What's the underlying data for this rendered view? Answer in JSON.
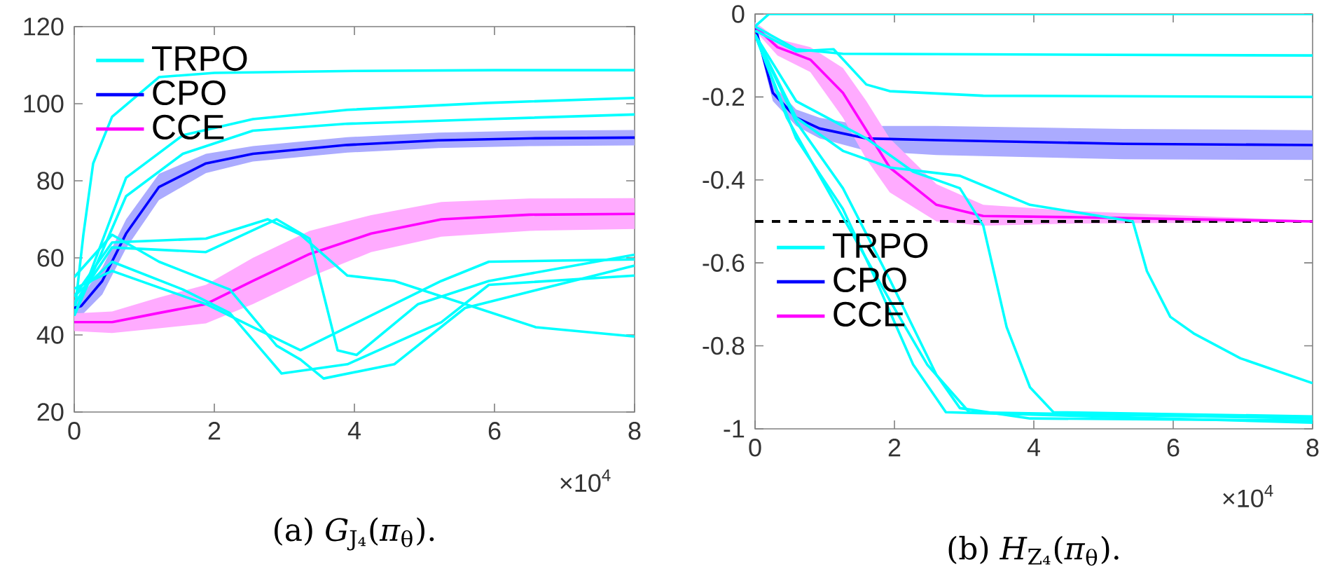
{
  "chart_data": [
    {
      "type": "line",
      "xlim": [
        0,
        8
      ],
      "ylim": [
        20,
        120
      ],
      "xticks": [
        0,
        2,
        4,
        6,
        8
      ],
      "yticks": [
        20,
        40,
        60,
        80,
        100,
        120
      ],
      "legend": "top left",
      "annotations": [
        "×10$^{4}$",
        "(a) *G*$_{J₄}$(*π*$_{θ}$)."
      ],
      "series": [
        {
          "name": "TRPO",
          "color": "#00ffff",
          "x": [
            0,
            0.13,
            0.27,
            0.54,
            1.21,
            2,
            4,
            6,
            8
          ],
          "values": [
            45,
            66,
            84.5,
            96.6,
            106.9,
            108,
            108.5,
            108.7,
            108.7
          ]
        },
        {
          "name": "CPO",
          "color": "#0000ff",
          "x": [
            0,
            0.1,
            0.4,
            0.74,
            1.21,
            1.88,
            2.55,
            3.9,
            5.2,
            6.5,
            8
          ],
          "values": [
            47,
            47.5,
            54,
            66.3,
            78.4,
            84.5,
            87,
            89.3,
            90.5,
            91,
            91.2
          ],
          "lower": [
            45,
            45,
            50.5,
            62.5,
            75,
            82,
            85,
            87.3,
            88.5,
            89,
            89.2
          ],
          "upper": [
            49,
            50,
            57.5,
            70,
            81.8,
            87,
            89,
            91.3,
            92.5,
            93,
            93.2
          ]
        },
        {
          "name": "CCE",
          "color": "#ff00ff",
          "x": [
            0,
            0.54,
            1.21,
            1.88,
            2.55,
            3.36,
            4.24,
            5.24,
            6.5,
            8
          ],
          "values": [
            43.3,
            43.3,
            45.7,
            48,
            54,
            61,
            66.3,
            70,
            71.2,
            71.4
          ],
          "lower": [
            41,
            40.5,
            41.7,
            43,
            48,
            55,
            61.5,
            65.5,
            67,
            67.5
          ],
          "upper": [
            45.6,
            46.1,
            49.7,
            53,
            60,
            67,
            71.1,
            74.5,
            75.4,
            75.5
          ]
        },
        {
          "color": "#00ffff",
          "x": [
            0,
            0.74,
            1.55,
            2.55,
            3.9,
            5.9,
            8
          ],
          "values": [
            45,
            80.8,
            91.8,
            96,
            98.4,
            100.2,
            101.5
          ]
        },
        {
          "color": "#00ffff",
          "x": [
            0,
            0.74,
            1.55,
            2.55,
            3.9,
            5.9,
            8
          ],
          "values": [
            45,
            76,
            87,
            93,
            94.8,
            96,
            97.2
          ]
        },
        {
          "color": "#00ffff",
          "x": [
            0,
            0.54,
            1.88,
            2.76,
            3.23,
            3.9,
            4.57,
            5.58,
            6.59,
            8
          ],
          "values": [
            50,
            64,
            65,
            70,
            66,
            55.4,
            54,
            48,
            42,
            39.6
          ]
        },
        {
          "color": "#00ffff",
          "x": [
            0,
            0.54,
            1.88,
            2.89,
            3.36,
            3.76,
            4.03,
            4.91,
            5.92,
            8
          ],
          "values": [
            48,
            62.7,
            61.5,
            70,
            65,
            36,
            34.8,
            48,
            54,
            60.8
          ]
        },
        {
          "color": "#00ffff",
          "x": [
            0,
            0.54,
            1.21,
            2.22,
            2.89,
            3.23,
            3.56,
            4.57,
            5.58,
            8
          ],
          "values": [
            55,
            66,
            59,
            51.8,
            37.2,
            33.6,
            28.7,
            32.4,
            47,
            58
          ]
        },
        {
          "color": "#00ffff",
          "x": [
            0,
            0.54,
            1.55,
            2.22,
            2.96,
            3.9,
            5.24,
            5.92,
            8
          ],
          "values": [
            50,
            59,
            51.8,
            45.7,
            30,
            32.4,
            43.3,
            53,
            55.4
          ]
        },
        {
          "color": "#00ffff",
          "x": [
            0,
            0.54,
            1.88,
            2.55,
            3.23,
            3.9,
            5.24,
            5.92,
            8
          ],
          "values": [
            52,
            56.6,
            48,
            42,
            36,
            42,
            54,
            59,
            59.6
          ]
        }
      ]
    },
    {
      "type": "line",
      "xlim": [
        0,
        8
      ],
      "ylim": [
        -1,
        0
      ],
      "xticks": [
        0,
        2,
        4,
        6,
        8
      ],
      "yticks": [
        -1,
        -0.8,
        -0.6,
        -0.4,
        -0.2,
        0
      ],
      "legend": "left",
      "ref_lines": [
        {
          "axis": "y",
          "value": -0.5,
          "color": "#000000",
          "line_style": "dashed"
        }
      ],
      "annotations": [
        "×10$^{4}$",
        "(b) *H*$_{Z₄}$(*π*$_{θ}$)."
      ],
      "series": [
        {
          "name": "TRPO",
          "color": "#00ffff",
          "x": [
            0,
            0.2,
            8
          ],
          "values": [
            -0.03,
            0,
            0
          ]
        },
        {
          "name": "CPO",
          "color": "#0000ff",
          "x": [
            0,
            0.255,
            0.59,
            0.926,
            1.597,
            2.603,
            5.287,
            8
          ],
          "values": [
            -0.03,
            -0.19,
            -0.25,
            -0.276,
            -0.3,
            -0.304,
            -0.313,
            -0.316
          ],
          "lower": [
            -0.04,
            -0.21,
            -0.27,
            -0.3,
            -0.33,
            -0.34,
            -0.35,
            -0.352
          ],
          "upper": [
            -0.02,
            -0.17,
            -0.23,
            -0.25,
            -0.27,
            -0.27,
            -0.277,
            -0.28
          ]
        },
        {
          "name": "CCE",
          "color": "#ff00ff",
          "x": [
            0,
            0.322,
            0.792,
            1.261,
            1.597,
            1.932,
            2.603,
            3.274,
            4.616,
            6.629,
            8
          ],
          "values": [
            -0.03,
            -0.08,
            -0.11,
            -0.19,
            -0.28,
            -0.37,
            -0.46,
            -0.487,
            -0.49,
            -0.496,
            -0.5
          ],
          "lower": [
            -0.04,
            -0.1,
            -0.14,
            -0.25,
            -0.35,
            -0.43,
            -0.5,
            -0.51,
            -0.505,
            -0.503,
            -0.502
          ],
          "upper": [
            -0.02,
            -0.06,
            -0.08,
            -0.13,
            -0.21,
            -0.3,
            -0.41,
            -0.46,
            -0.475,
            -0.489,
            -0.498
          ]
        },
        {
          "color": "#00ffff",
          "x": [
            0,
            0.59,
            1.261,
            8
          ],
          "values": [
            -0.03,
            -0.085,
            -0.096,
            -0.1
          ]
        },
        {
          "color": "#00ffff",
          "x": [
            0,
            0.59,
            1.127,
            1.597,
            1.932,
            3.274,
            8
          ],
          "values": [
            -0.04,
            -0.09,
            -0.085,
            -0.17,
            -0.186,
            -0.197,
            -0.2
          ]
        },
        {
          "color": "#00ffff",
          "x": [
            0,
            0.59,
            1.261,
            1.932,
            2.939,
            3.945,
            5.421,
            5.623,
            5.958,
            6.294,
            6.965,
            8
          ],
          "values": [
            -0.05,
            -0.25,
            -0.33,
            -0.37,
            -0.39,
            -0.46,
            -0.5,
            -0.62,
            -0.73,
            -0.77,
            -0.83,
            -0.89
          ]
        },
        {
          "color": "#00ffff",
          "x": [
            0,
            0.59,
            1.597,
            2.268,
            2.939,
            3.274,
            3.61,
            3.945,
            4.281,
            8
          ],
          "values": [
            -0.05,
            -0.21,
            -0.3,
            -0.38,
            -0.42,
            -0.51,
            -0.755,
            -0.9,
            -0.96,
            -0.97
          ]
        },
        {
          "color": "#00ffff",
          "x": [
            0,
            0.59,
            1.261,
            1.932,
            2.268,
            2.603,
            2.939,
            3.945,
            8
          ],
          "values": [
            -0.05,
            -0.26,
            -0.42,
            -0.64,
            -0.755,
            -0.87,
            -0.95,
            -0.975,
            -0.98
          ]
        },
        {
          "color": "#00ffff",
          "x": [
            0,
            0.59,
            1.261,
            1.731,
            2.268,
            2.738,
            8
          ],
          "values": [
            -0.05,
            -0.3,
            -0.47,
            -0.64,
            -0.845,
            -0.96,
            -0.985
          ]
        },
        {
          "color": "#00ffff",
          "x": [
            0,
            0.456,
            1.127,
            1.932,
            2.469,
            3.073,
            8
          ],
          "values": [
            -0.05,
            -0.25,
            -0.45,
            -0.69,
            -0.845,
            -0.96,
            -0.975
          ]
        }
      ]
    }
  ]
}
